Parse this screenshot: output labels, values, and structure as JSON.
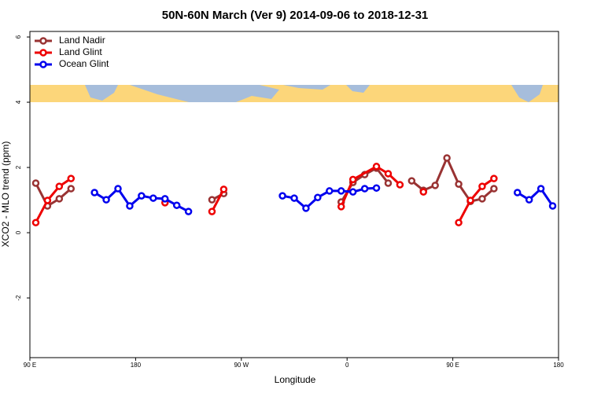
{
  "chart_data": {
    "type": "line",
    "title": "50N-60N March (Ver 9)   2014-09-06 to 2018-12-31",
    "x_label": "Longitude",
    "y_label": "XCO2 - MLO trend (ppm)",
    "xlim": [
      90,
      540
    ],
    "xticks": [
      {
        "value": 90,
        "label": "90 E"
      },
      180,
      {
        "value": 270,
        "label": "90 W"
      },
      {
        "value": 360,
        "label": "0"
      },
      {
        "value": 450,
        "label": "90 E"
      },
      {
        "value": 540,
        "label": "180"
      }
    ],
    "ylim": [
      -3.83,
      6.17
    ],
    "yticks": [
      -2,
      0,
      2,
      4,
      6
    ],
    "legend": "upper left",
    "series": [
      {
        "name": "Land Nadir",
        "color": "#993333",
        "x": [
          95,
          105,
          115,
          125,
          null,
          245,
          255,
          null,
          355,
          365,
          375,
          385,
          395,
          null,
          415,
          425,
          435,
          445,
          455,
          465,
          475,
          485
        ],
        "values": [
          1.52,
          0.82,
          1.04,
          1.35,
          null,
          1.01,
          1.2,
          null,
          0.94,
          1.54,
          1.78,
          1.98,
          1.52,
          null,
          1.59,
          1.3,
          1.45,
          2.29,
          1.49,
          0.96,
          1.04,
          1.35
        ]
      },
      {
        "name": "Land Glint",
        "color": "#ee0000",
        "x": [
          95,
          105,
          115,
          125,
          null,
          205,
          null,
          245,
          255,
          null,
          355,
          365,
          385,
          395,
          405,
          null,
          425,
          null,
          455,
          465,
          475,
          485
        ],
        "values": [
          0.31,
          0.99,
          1.42,
          1.66,
          null,
          0.92,
          null,
          0.65,
          1.33,
          null,
          0.8,
          1.63,
          2.03,
          1.81,
          1.47,
          null,
          1.25,
          null,
          0.31,
          0.99,
          1.42,
          1.66
        ]
      },
      {
        "name": "Ocean Glint",
        "color": "#0000ee",
        "x": [
          145,
          155,
          165,
          175,
          185,
          195,
          205,
          215,
          225,
          null,
          305,
          315,
          325,
          335,
          345,
          355,
          365,
          375,
          385,
          null,
          505,
          515,
          525,
          535
        ],
        "values": [
          1.23,
          1.01,
          1.35,
          0.82,
          1.13,
          1.06,
          1.04,
          0.84,
          0.65,
          null,
          1.13,
          1.06,
          0.75,
          1.08,
          1.28,
          1.28,
          1.25,
          1.35,
          1.37,
          null,
          1.23,
          1.01,
          1.35,
          0.82
        ]
      }
    ]
  }
}
